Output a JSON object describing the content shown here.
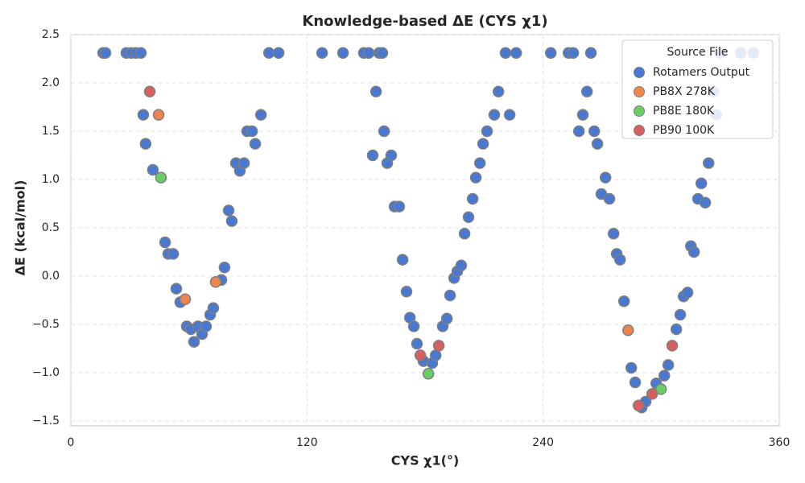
{
  "chart_data": {
    "type": "scatter",
    "title": "Knowledge-based ΔE (CYS χ1)",
    "x_label": "CYS χ1(°)",
    "y_label": "ΔE (kcal/mol)",
    "xlim": [
      0,
      360
    ],
    "ylim": [
      -1.55,
      2.5
    ],
    "xticks": [
      0,
      120,
      240,
      360
    ],
    "yticks": [
      {
        "value": -1.5,
        "label": "−1.5"
      },
      {
        "value": -1.0,
        "label": "−1.0"
      },
      {
        "value": -0.5,
        "label": "−0.5"
      },
      {
        "value": 0,
        "label": "0.0"
      },
      0.5,
      {
        "value": 1.0,
        "label": "1.0"
      },
      1.5,
      {
        "value": 2.0,
        "label": "2.0"
      },
      2.5
    ],
    "grid": true,
    "legend_title": "Source File",
    "legend_position": "upper-right",
    "series": [
      {
        "name": "Rotamers Output",
        "color": "#4878d0",
        "x": [
          16.4,
          17.6,
          28.2,
          30.7,
          33.1,
          35.6,
          36.8,
          38,
          41.7,
          47.9,
          49.5,
          52,
          53.6,
          55.6,
          58.9,
          61,
          62.6,
          64.6,
          66.7,
          68.7,
          70.8,
          72.4,
          76.5,
          78.1,
          80.2,
          81.8,
          83.9,
          85.9,
          88,
          89.6,
          92.1,
          93.7,
          96.6,
          100.7,
          105.6,
          127.7,
          138.3,
          148.9,
          151.4,
          153.4,
          155.1,
          156.7,
          158.3,
          159.2,
          160.8,
          162.8,
          164.5,
          166.9,
          168.6,
          170.6,
          172.3,
          174.3,
          175.9,
          179.2,
          183.7,
          185.4,
          189,
          191.1,
          192.7,
          194.8,
          196.4,
          198.4,
          200.1,
          202.1,
          204.2,
          205.8,
          207.9,
          209.5,
          211.5,
          215.2,
          217.3,
          220.9,
          223,
          226.3,
          243.9,
          252.9,
          255.3,
          258.2,
          260.2,
          262.3,
          264.3,
          266,
          267.6,
          269.6,
          271.7,
          273.7,
          275.8,
          277.4,
          279.1,
          281.1,
          284.8,
          286.8,
          290.1,
          292.1,
          297.5,
          301.6,
          303.6,
          307.7,
          309.7,
          311.4,
          313.4,
          315.1,
          316.7,
          318.7,
          320.4,
          322.4,
          324.1,
          326.5,
          328.1,
          330.2,
          340.4,
          346.9
        ],
        "values": [
          2.31,
          2.31,
          2.31,
          2.31,
          2.31,
          2.31,
          1.67,
          1.37,
          1.1,
          0.35,
          0.23,
          0.23,
          -0.13,
          -0.27,
          -0.52,
          -0.55,
          -0.68,
          -0.52,
          -0.6,
          -0.52,
          -0.4,
          -0.33,
          -0.04,
          0.09,
          0.68,
          0.57,
          1.17,
          1.09,
          1.17,
          1.5,
          1.5,
          1.37,
          1.67,
          2.31,
          2.31,
          2.31,
          2.31,
          2.31,
          2.31,
          1.25,
          1.91,
          2.31,
          2.31,
          1.5,
          1.17,
          1.25,
          0.72,
          0.72,
          0.17,
          -0.16,
          -0.43,
          -0.52,
          -0.7,
          -0.88,
          -0.9,
          -0.82,
          -0.52,
          -0.44,
          -0.2,
          -0.02,
          0.05,
          0.11,
          0.44,
          0.61,
          0.8,
          1.02,
          1.17,
          1.37,
          1.5,
          1.67,
          1.91,
          2.31,
          1.67,
          2.31,
          2.31,
          2.31,
          2.31,
          1.5,
          1.67,
          1.91,
          2.31,
          1.5,
          1.37,
          0.85,
          1.02,
          0.8,
          0.44,
          0.23,
          0.17,
          -0.26,
          -0.95,
          -1.1,
          -1.36,
          -1.3,
          -1.11,
          -1.03,
          -0.92,
          -0.55,
          -0.4,
          -0.21,
          -0.17,
          0.31,
          0.25,
          0.8,
          0.96,
          0.76,
          1.17,
          1.91,
          1.67,
          2.31,
          2.31,
          2.31
        ]
      },
      {
        "name": "PB8X 278K",
        "color": "#ee854a",
        "x": [
          44.6,
          58.1,
          73.6,
          283.2
        ],
        "values": [
          1.67,
          -0.24,
          -0.06,
          -0.56
        ]
      },
      {
        "name": "PB8E 180K",
        "color": "#6acc64",
        "x": [
          45.8,
          181.7,
          299.9
        ],
        "values": [
          1.02,
          -1.01,
          -1.17
        ]
      },
      {
        "name": "PB90 100K",
        "color": "#d65f5f",
        "x": [
          40.1,
          177.6,
          187,
          288.5,
          295.4,
          305.6
        ],
        "values": [
          1.91,
          -0.82,
          -0.72,
          -1.34,
          -1.22,
          -0.72
        ]
      }
    ]
  }
}
